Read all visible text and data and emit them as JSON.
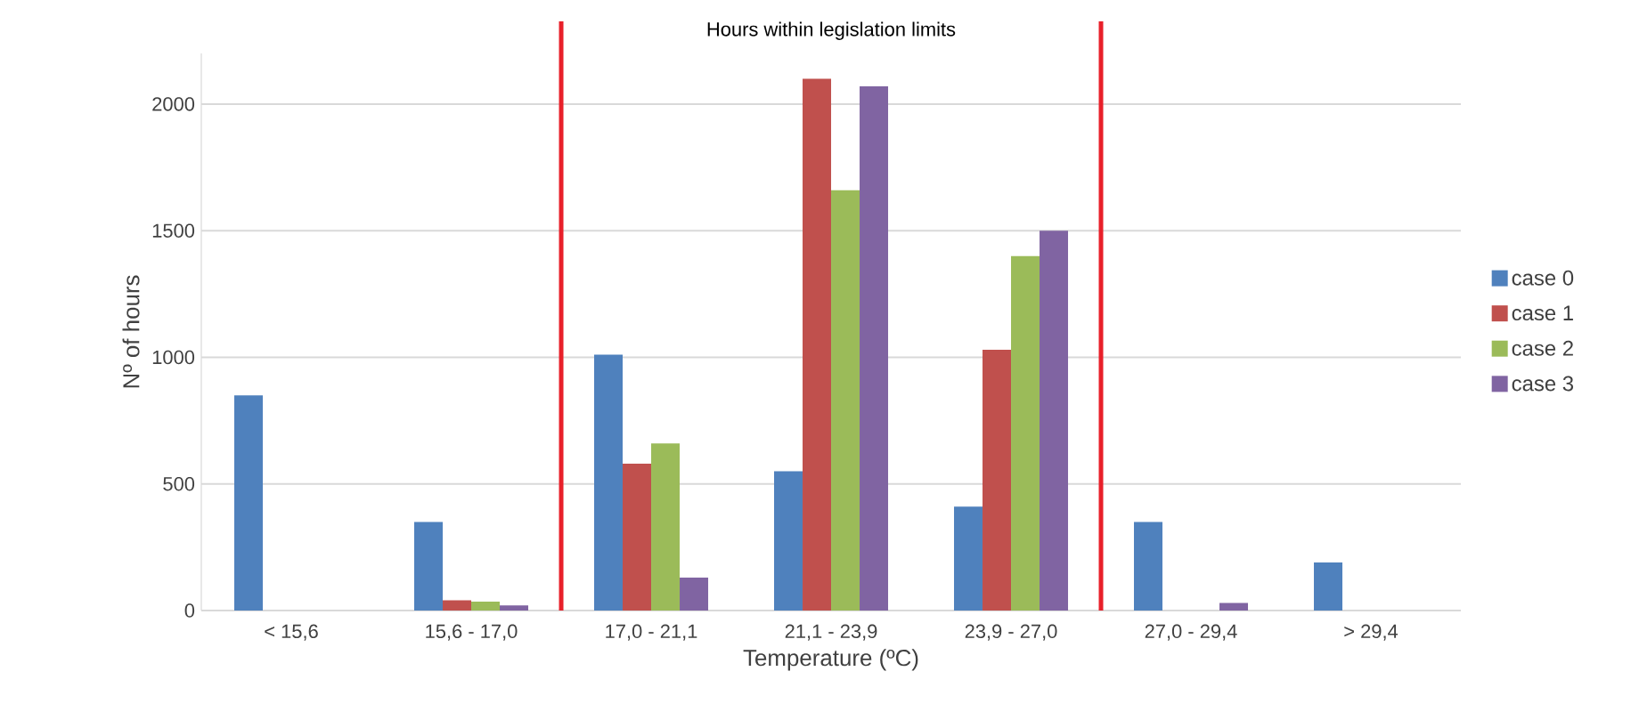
{
  "chart_data": {
    "type": "bar",
    "xlabel": "Temperature (ºC)",
    "ylabel": "Nº of hours",
    "categories": [
      "< 15,6",
      "15,6 - 17,0",
      "17,0 - 21,1",
      "21,1 - 23,9",
      "23,9 - 27,0",
      "27,0 - 29,4",
      "> 29,4"
    ],
    "series": [
      {
        "name": "case 0",
        "color": "#4f81bd",
        "values": [
          850,
          350,
          1010,
          550,
          410,
          350,
          190
        ]
      },
      {
        "name": "case 1",
        "color": "#c0504d",
        "values": [
          0,
          40,
          580,
          2100,
          1030,
          0,
          0
        ]
      },
      {
        "name": "case 2",
        "color": "#9bbb59",
        "values": [
          0,
          35,
          660,
          1660,
          1400,
          0,
          0
        ]
      },
      {
        "name": "case 3",
        "color": "#8064a2",
        "values": [
          0,
          20,
          130,
          2070,
          1500,
          30,
          0
        ]
      }
    ],
    "ylim": [
      0,
      2200
    ],
    "yticks": [
      0,
      500,
      1000,
      1500,
      2000
    ],
    "grid": "y",
    "legend": "right",
    "annotations": [
      "Hours within legislation limits"
    ]
  }
}
